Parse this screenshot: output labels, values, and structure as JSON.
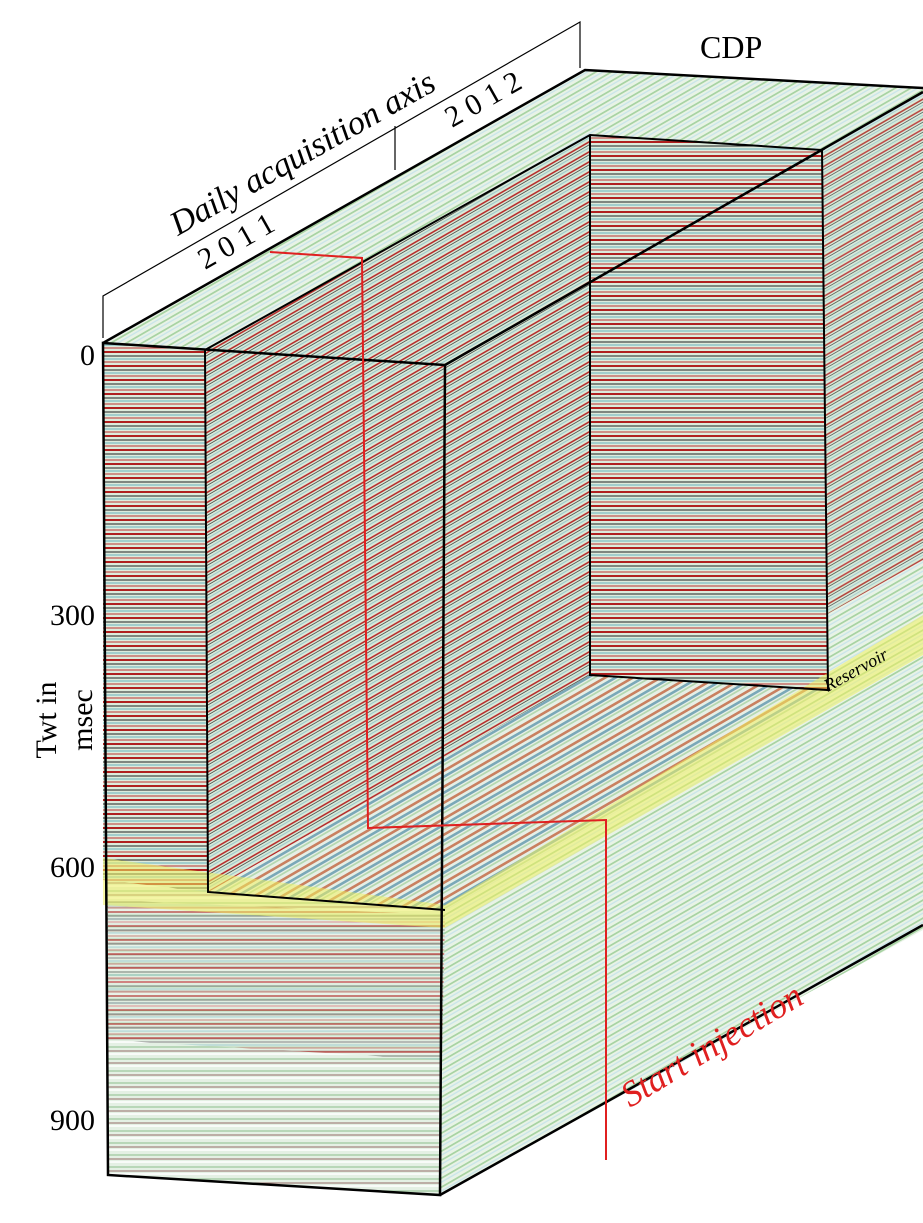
{
  "header": {
    "axis_title": "Daily acquisition axis",
    "years": [
      "2 0 1 1",
      "2 0 1 2"
    ],
    "cdp": "CDP"
  },
  "time_axis": {
    "title_line1": "Twt in",
    "title_line2": "msec",
    "ticks": [
      "0",
      "300",
      "600",
      "900"
    ]
  },
  "annotations": {
    "reservoir": "Reservoir",
    "injection": "Start injection"
  }
}
